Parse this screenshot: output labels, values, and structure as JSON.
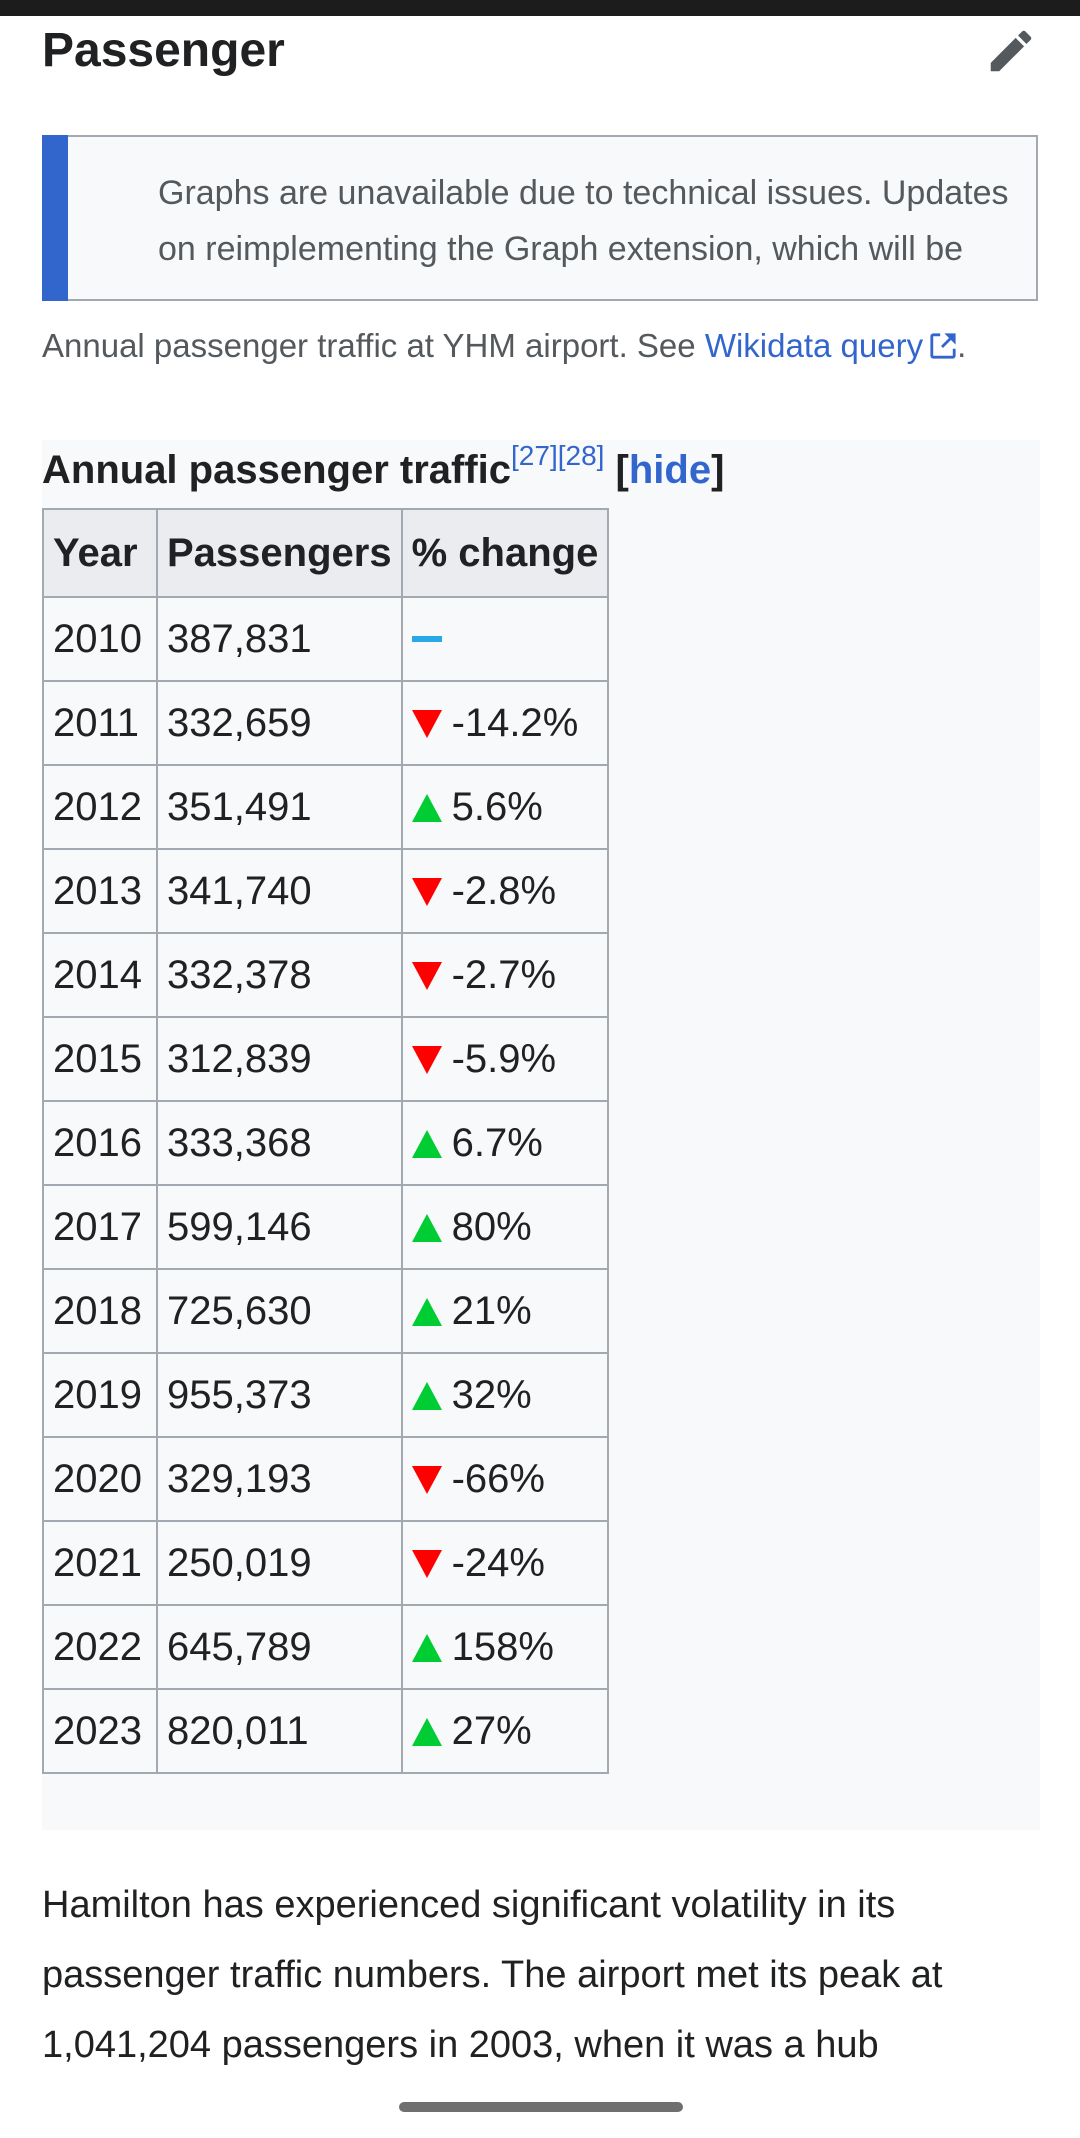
{
  "section": {
    "title": "Passenger",
    "edit_icon": "pencil-icon"
  },
  "notice": {
    "text": "Graphs are unavailable due to technical issues. Updates on reimplementing the Graph extension, which will be"
  },
  "caption": {
    "text": "Annual passenger traffic at YHM airport. See ",
    "link": "Wikidata query",
    "end": "."
  },
  "table": {
    "title": "Annual passenger traffic",
    "refs": [
      "[27]",
      "[28]"
    ],
    "hide_label": "hide",
    "headers": [
      "Year",
      "Passengers",
      "% change"
    ],
    "rows": [
      {
        "year": "2010",
        "passengers": "387,831",
        "change": "",
        "trend": "none"
      },
      {
        "year": "2011",
        "passengers": "332,659",
        "change": "-14.2%",
        "trend": "down"
      },
      {
        "year": "2012",
        "passengers": "351,491",
        "change": "5.6%",
        "trend": "up"
      },
      {
        "year": "2013",
        "passengers": "341,740",
        "change": "-2.8%",
        "trend": "down"
      },
      {
        "year": "2014",
        "passengers": "332,378",
        "change": "-2.7%",
        "trend": "down"
      },
      {
        "year": "2015",
        "passengers": "312,839",
        "change": "-5.9%",
        "trend": "down"
      },
      {
        "year": "2016",
        "passengers": "333,368",
        "change": "6.7%",
        "trend": "up"
      },
      {
        "year": "2017",
        "passengers": "599,146",
        "change": "80%",
        "trend": "up"
      },
      {
        "year": "2018",
        "passengers": "725,630",
        "change": "21%",
        "trend": "up"
      },
      {
        "year": "2019",
        "passengers": "955,373",
        "change": "32%",
        "trend": "up"
      },
      {
        "year": "2020",
        "passengers": "329,193",
        "change": "-66%",
        "trend": "down"
      },
      {
        "year": "2021",
        "passengers": "250,019",
        "change": "-24%",
        "trend": "down"
      },
      {
        "year": "2022",
        "passengers": "645,789",
        "change": "158%",
        "trend": "up"
      },
      {
        "year": "2023",
        "passengers": "820,011",
        "change": "27%",
        "trend": "up"
      }
    ]
  },
  "paragraph": {
    "text": "Hamilton has experienced significant volatility in its passenger traffic numbers. The airport met its peak at 1,041,204 passengers in 2003, when it was a hub"
  },
  "colors": {
    "link": "#3366cc",
    "up": "#00cc33",
    "down": "#ff0000",
    "neutral": "#28a8e6",
    "notice_bar": "#3366cc"
  }
}
